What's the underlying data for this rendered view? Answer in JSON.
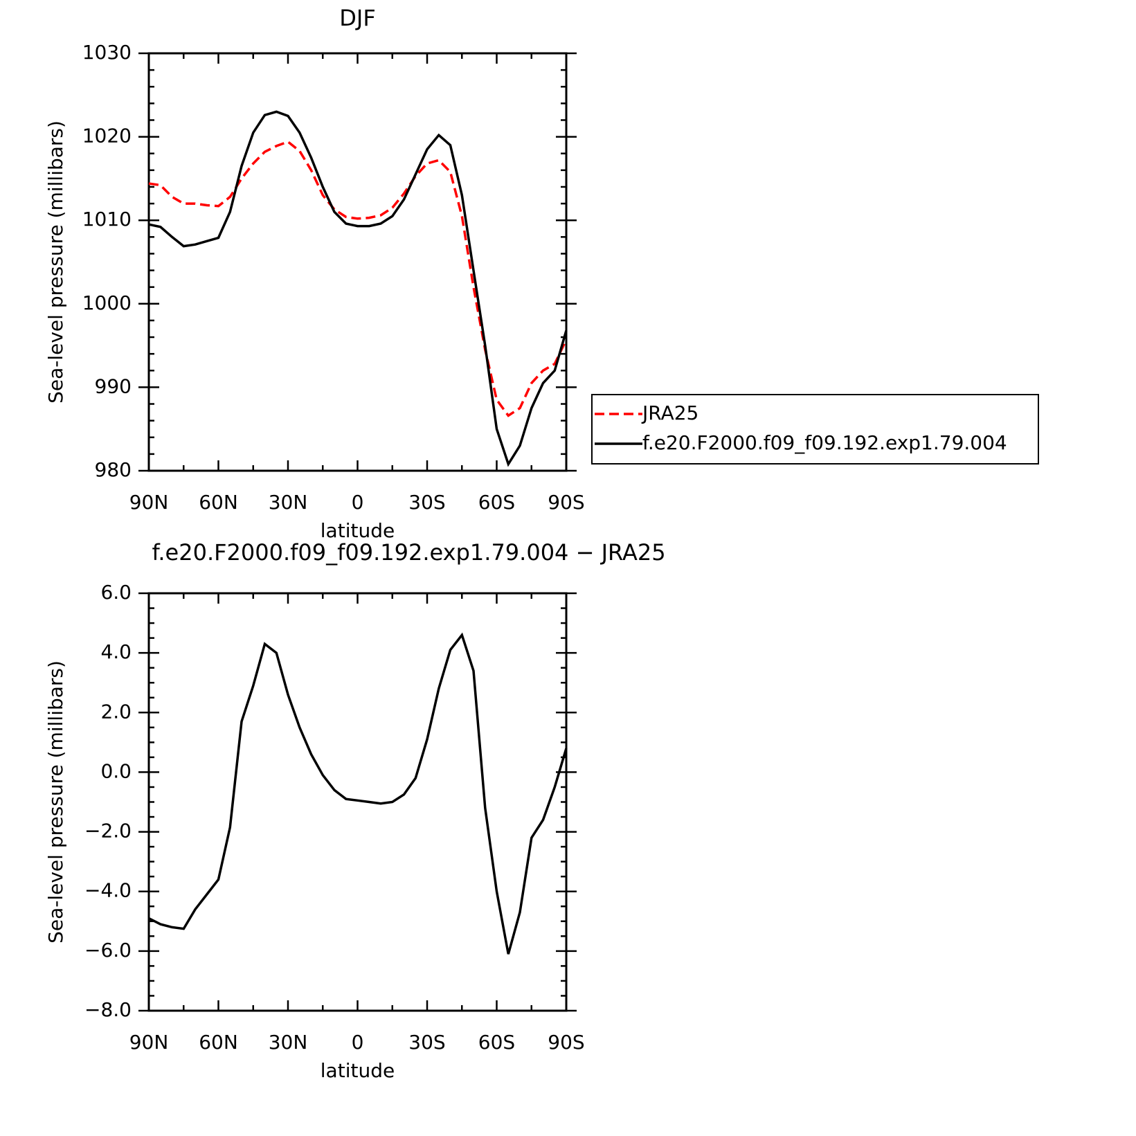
{
  "chart_data": [
    {
      "type": "line",
      "title": "DJF",
      "xlabel": "latitude",
      "ylabel": "Sea-level pressure (millibars)",
      "x": [
        90,
        85,
        80,
        75,
        70,
        65,
        60,
        55,
        50,
        45,
        40,
        35,
        30,
        25,
        20,
        15,
        10,
        5,
        0,
        -5,
        -10,
        -15,
        -20,
        -25,
        -30,
        -35,
        -40,
        -45,
        -50,
        -55,
        -60,
        -65,
        -70,
        -75,
        -80,
        -85,
        -90
      ],
      "xlim": [
        90,
        -90
      ],
      "xticks": [
        {
          "value": 90,
          "label": "90N"
        },
        {
          "value": 60,
          "label": "60N"
        },
        {
          "value": 30,
          "label": "30N"
        },
        0,
        {
          "value": -30,
          "label": "30S"
        },
        {
          "value": -60,
          "label": "60S"
        },
        {
          "value": -90,
          "label": "90S"
        }
      ],
      "ylim": [
        980,
        1030
      ],
      "yticks": [
        980,
        990,
        1000,
        1010,
        1020,
        1030
      ],
      "grid": false,
      "series": [
        {
          "name": "JRA25",
          "color": "#ff0000",
          "linestyle": "dashed",
          "values": [
            1014.4,
            1014.2,
            1012.8,
            1012.0,
            1012.0,
            1011.8,
            1011.7,
            1012.8,
            1015.0,
            1016.8,
            1018.2,
            1018.9,
            1019.4,
            1018.3,
            1016.0,
            1013.0,
            1011.3,
            1010.4,
            1010.2,
            1010.3,
            1010.6,
            1011.5,
            1013.2,
            1015.3,
            1016.8,
            1017.2,
            1015.8,
            1010.5,
            1002.0,
            994.5,
            988.5,
            986.6,
            987.5,
            990.5,
            992.0,
            992.8,
            995.7
          ]
        },
        {
          "name": "f.e20.F2000.f09_f09.192.exp1.79.004",
          "color": "#000000",
          "linestyle": "solid",
          "values": [
            1009.5,
            1009.2,
            1008.0,
            1006.9,
            1007.1,
            1007.5,
            1007.9,
            1011.0,
            1016.5,
            1020.5,
            1022.6,
            1023.0,
            1022.5,
            1020.5,
            1017.5,
            1014.0,
            1011.0,
            1009.6,
            1009.3,
            1009.3,
            1009.6,
            1010.5,
            1012.5,
            1015.5,
            1018.5,
            1020.2,
            1019.0,
            1013.0,
            1004.0,
            995.0,
            985.0,
            980.8,
            983.0,
            987.5,
            990.5,
            992.0,
            996.8
          ]
        }
      ]
    },
    {
      "type": "line",
      "title": "f.e20.F2000.f09_f09.192.exp1.79.004 − JRA25",
      "xlabel": "latitude",
      "ylabel": "Sea-level pressure (millibars)",
      "x": [
        90,
        85,
        80,
        75,
        70,
        65,
        60,
        55,
        50,
        45,
        40,
        35,
        30,
        25,
        20,
        15,
        10,
        5,
        0,
        -5,
        -10,
        -15,
        -20,
        -25,
        -30,
        -35,
        -40,
        -45,
        -50,
        -55,
        -60,
        -65,
        -70,
        -75,
        -80,
        -85,
        -90
      ],
      "xlim": [
        90,
        -90
      ],
      "xticks": [
        {
          "value": 90,
          "label": "90N"
        },
        {
          "value": 60,
          "label": "60N"
        },
        {
          "value": 30,
          "label": "30N"
        },
        0,
        {
          "value": -30,
          "label": "30S"
        },
        {
          "value": -60,
          "label": "60S"
        },
        {
          "value": -90,
          "label": "90S"
        }
      ],
      "ylim": [
        -8,
        6
      ],
      "yticks": [
        {
          "value": -8,
          "label": "−8.0"
        },
        {
          "value": -6,
          "label": "−6.0"
        },
        {
          "value": -4,
          "label": "−4.0"
        },
        {
          "value": -2,
          "label": "−2.0"
        },
        {
          "value": 0,
          "label": "0.0"
        },
        {
          "value": 2,
          "label": "2.0"
        },
        {
          "value": 4,
          "label": "4.0"
        },
        {
          "value": 6,
          "label": "6.0"
        }
      ],
      "grid": false,
      "color": "#000000",
      "values": [
        -4.9,
        -5.1,
        -5.2,
        -5.25,
        -4.6,
        -4.1,
        -3.6,
        -1.85,
        1.7,
        2.9,
        4.3,
        4.0,
        2.6,
        1.5,
        0.6,
        -0.1,
        -0.6,
        -0.9,
        -0.95,
        -1.0,
        -1.05,
        -1.0,
        -0.75,
        -0.2,
        1.1,
        2.8,
        4.1,
        4.6,
        3.4,
        -1.2,
        -4.0,
        -6.1,
        -4.7,
        -2.2,
        -1.6,
        -0.5,
        0.8
      ]
    }
  ]
}
